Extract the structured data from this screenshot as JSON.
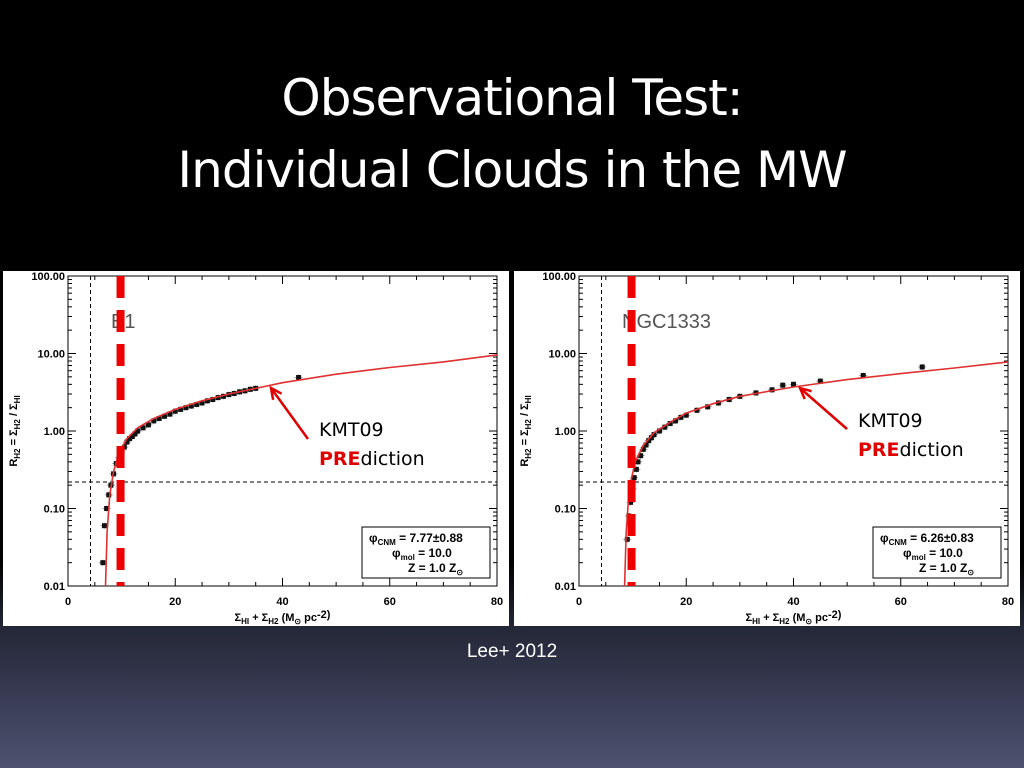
{
  "slide": {
    "title_line1": "Observational Test:",
    "title_line2": "Individual Clouds in the MW",
    "credit": "Lee+ 2012"
  },
  "colors": {
    "model_curve": "#e03030",
    "threshold_line": "#ee0000",
    "data_points": "#111111",
    "prediction_highlight": "#e00000"
  },
  "chart_data": [
    {
      "type": "scatter",
      "cloud": "B1",
      "xlabel": "Σ_HI + Σ_H2 (M_⊙ pc^-2)",
      "ylabel": "R_H2 = Σ_H2 / Σ_HI",
      "xlim": [
        0,
        80
      ],
      "ylim": [
        0.01,
        100
      ],
      "yscale": "log",
      "xticks": [
        "0",
        "20",
        "40",
        "60",
        "80"
      ],
      "yticks": [
        "0.01",
        "0.10",
        "1.00",
        "10.00",
        "100.00"
      ],
      "reference_lines": {
        "vertical_dashed_x": 4.2,
        "horizontal_dashed_y": 0.22,
        "thick_red_dashed_x": 9.8
      },
      "legend": {
        "line1": "φ_CNM = 7.77±0.88",
        "line2": "φ_mol = 10.0",
        "line3": "Z = 1.0 Z_⊙",
        "position": "bottom-right"
      },
      "annotation": {
        "line1": "KMT09",
        "pre": "PRE",
        "rest": "diction"
      },
      "model_curve": {
        "points": [
          [
            7.0,
            0.01
          ],
          [
            7.3,
            0.05
          ],
          [
            7.8,
            0.15
          ],
          [
            8.5,
            0.3
          ],
          [
            9.5,
            0.52
          ],
          [
            11,
            0.8
          ],
          [
            13,
            1.1
          ],
          [
            16,
            1.45
          ],
          [
            20,
            1.9
          ],
          [
            25,
            2.45
          ],
          [
            30,
            3.0
          ],
          [
            35,
            3.55
          ],
          [
            40,
            4.2
          ],
          [
            50,
            5.4
          ],
          [
            60,
            6.6
          ],
          [
            70,
            7.8
          ],
          [
            80,
            9.6
          ]
        ]
      },
      "data_points": [
        [
          6.5,
          0.02
        ],
        [
          6.8,
          0.06
        ],
        [
          7.2,
          0.1
        ],
        [
          7.6,
          0.15
        ],
        [
          8.0,
          0.2
        ],
        [
          8.5,
          0.28
        ],
        [
          9.0,
          0.38
        ],
        [
          9.5,
          0.45
        ],
        [
          10.0,
          0.55
        ],
        [
          10.5,
          0.62
        ],
        [
          11.0,
          0.72
        ],
        [
          11.5,
          0.8
        ],
        [
          12.0,
          0.85
        ],
        [
          12.5,
          0.92
        ],
        [
          13.0,
          1.0
        ],
        [
          14.0,
          1.1
        ],
        [
          15.0,
          1.2
        ],
        [
          16.0,
          1.35
        ],
        [
          17.0,
          1.45
        ],
        [
          18.0,
          1.55
        ],
        [
          19.0,
          1.65
        ],
        [
          20.0,
          1.8
        ],
        [
          21.0,
          1.9
        ],
        [
          22.0,
          2.0
        ],
        [
          23.0,
          2.1
        ],
        [
          24.0,
          2.2
        ],
        [
          25.0,
          2.3
        ],
        [
          26.0,
          2.45
        ],
        [
          27.0,
          2.55
        ],
        [
          28.0,
          2.7
        ],
        [
          29.0,
          2.8
        ],
        [
          30.0,
          2.95
        ],
        [
          31.0,
          3.05
        ],
        [
          32.0,
          3.2
        ],
        [
          33.0,
          3.3
        ],
        [
          34.0,
          3.45
        ],
        [
          35.0,
          3.55
        ],
        [
          43.0,
          4.9
        ]
      ]
    },
    {
      "type": "scatter",
      "cloud": "NGC1333",
      "xlabel": "Σ_HI + Σ_H2 (M_⊙ pc^-2)",
      "ylabel": "R_H2 = Σ_H2 / Σ_HI",
      "xlim": [
        0,
        80
      ],
      "ylim": [
        0.01,
        100
      ],
      "yscale": "log",
      "xticks": [
        "0",
        "20",
        "40",
        "60",
        "80"
      ],
      "yticks": [
        "0.01",
        "0.10",
        "1.00",
        "10.00",
        "100.00"
      ],
      "reference_lines": {
        "vertical_dashed_x": 4.2,
        "horizontal_dashed_y": 0.22,
        "thick_red_dashed_x": 9.8
      },
      "legend": {
        "line1": "φ_CNM = 6.26±0.83",
        "line2": "φ_mol = 10.0",
        "line3": "Z = 1.0 Z_⊙",
        "position": "bottom-right"
      },
      "annotation": {
        "line1": "KMT09",
        "pre": "PRE",
        "rest": "diction"
      },
      "model_curve": {
        "points": [
          [
            8.5,
            0.01
          ],
          [
            8.8,
            0.05
          ],
          [
            9.2,
            0.12
          ],
          [
            9.8,
            0.25
          ],
          [
            10.6,
            0.42
          ],
          [
            12,
            0.65
          ],
          [
            14,
            0.95
          ],
          [
            17,
            1.3
          ],
          [
            20,
            1.7
          ],
          [
            25,
            2.25
          ],
          [
            30,
            2.8
          ],
          [
            40,
            3.7
          ],
          [
            50,
            4.6
          ],
          [
            60,
            5.5
          ],
          [
            70,
            6.5
          ],
          [
            80,
            7.8
          ]
        ]
      },
      "data_points": [
        [
          9.0,
          0.04
        ],
        [
          9.3,
          0.08
        ],
        [
          9.6,
          0.12
        ],
        [
          10.0,
          0.18
        ],
        [
          10.3,
          0.25
        ],
        [
          10.7,
          0.32
        ],
        [
          11.0,
          0.4
        ],
        [
          11.5,
          0.48
        ],
        [
          12.0,
          0.58
        ],
        [
          12.5,
          0.66
        ],
        [
          13.0,
          0.75
        ],
        [
          13.5,
          0.82
        ],
        [
          14.0,
          0.9
        ],
        [
          15.0,
          1.0
        ],
        [
          16.0,
          1.12
        ],
        [
          17.0,
          1.25
        ],
        [
          18.0,
          1.35
        ],
        [
          19.0,
          1.5
        ],
        [
          20.0,
          1.6
        ],
        [
          22.0,
          1.85
        ],
        [
          24.0,
          2.05
        ],
        [
          26.0,
          2.3
        ],
        [
          28.0,
          2.55
        ],
        [
          30.0,
          2.8
        ],
        [
          33.0,
          3.1
        ],
        [
          36.0,
          3.4
        ],
        [
          38.0,
          3.9
        ],
        [
          40.0,
          4.0
        ],
        [
          45.0,
          4.4
        ],
        [
          53.0,
          5.2
        ],
        [
          64.0,
          6.7
        ]
      ]
    }
  ]
}
